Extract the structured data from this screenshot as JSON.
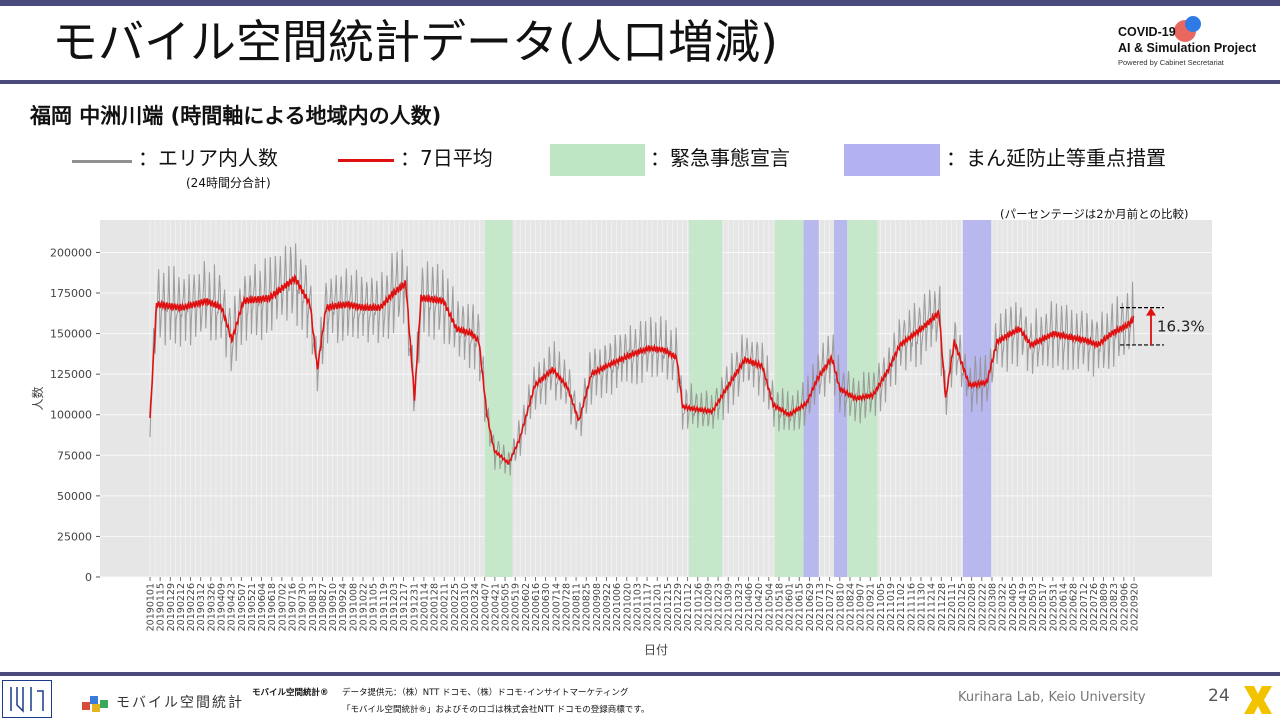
{
  "header": {
    "title": "モバイル空間統計データ(人口増減)",
    "logo_line1": "COVID-19",
    "logo_line2": "AI & Simulation Project",
    "logo_line3": "Powered by Cabinet Secretariat"
  },
  "subtitle": "福岡 中洲川端 (時間軸による地域内の人数)",
  "legend": {
    "gray_label": "：エリア内人数",
    "gray_note": "(24時間分合計)",
    "red_label": "：7日平均",
    "green_label": "：緊急事態宣言",
    "blue_label": "：まん延防止等重点措置"
  },
  "percent_note": "(パーセンテージは2か月前との比較)",
  "colors": {
    "header_rule": "#4a4a7c",
    "daily_line": "#909090",
    "avg_line": "#e01010",
    "emergency": "#bfe6c4",
    "priority": "#b2b2f0",
    "plot_bg": "#e6e6e6"
  },
  "chart_data": {
    "type": "line",
    "xlabel": "日付",
    "ylabel": "人数",
    "ylim": [
      0,
      220000
    ],
    "yticks": [
      0,
      25000,
      50000,
      75000,
      100000,
      125000,
      150000,
      175000,
      200000
    ],
    "ytick_labels": [
      "0",
      "25000",
      "50000",
      "75000",
      "100000",
      "125000",
      "150000",
      "175000",
      "200000"
    ],
    "x_tick_labels": [
      "20190101",
      "20190115",
      "20190129",
      "20190212",
      "20190226",
      "20190312",
      "20190326",
      "20190409",
      "20190423",
      "20190507",
      "20190521",
      "20190604",
      "20190618",
      "20190702",
      "20190716",
      "20190730",
      "20190813",
      "20190827",
      "20190910",
      "20190924",
      "20191008",
      "20191022",
      "20191105",
      "20191119",
      "20191203",
      "20191217",
      "20191231",
      "20200114",
      "20200128",
      "20200211",
      "20200225",
      "20200310",
      "20200324",
      "20200407",
      "20200421",
      "20200505",
      "20200519",
      "20200602",
      "20200616",
      "20200630",
      "20200714",
      "20200728",
      "20200811",
      "20200825",
      "20200908",
      "20200922",
      "20201006",
      "20201020",
      "20201103",
      "20201117",
      "20201201",
      "20201215",
      "20201229",
      "20210112",
      "20210126",
      "20210209",
      "20210223",
      "20210309",
      "20210323",
      "20210406",
      "20210420",
      "20210504",
      "20210518",
      "20210601",
      "20210615",
      "20210629",
      "20210713",
      "20210727",
      "20210810",
      "20210824",
      "20210907",
      "20210921",
      "20211005",
      "20211019",
      "20211102",
      "20211116",
      "20211130",
      "20211214",
      "20211228",
      "20220111",
      "20220125",
      "20220208",
      "20220222",
      "20220308",
      "20220322",
      "20220405",
      "20220419",
      "20220503",
      "20220517",
      "20220531",
      "20220614",
      "20220628",
      "20220712",
      "20220726",
      "20220809",
      "20220823",
      "20220906",
      "20220920"
    ],
    "emergency_periods": [
      [
        "2020-04-07",
        "2020-05-14"
      ],
      [
        "2021-01-14",
        "2021-02-28"
      ],
      [
        "2021-05-12",
        "2021-06-20"
      ],
      [
        "2021-08-20",
        "2021-09-30"
      ]
    ],
    "priority_periods": [
      [
        "2021-06-21",
        "2021-07-11"
      ],
      [
        "2021-08-02",
        "2021-08-19"
      ],
      [
        "2022-01-27",
        "2022-03-06"
      ]
    ],
    "avg_keypoints": [
      [
        "2019-01-01",
        98000
      ],
      [
        "2019-01-10",
        168000
      ],
      [
        "2019-02-15",
        166000
      ],
      [
        "2019-03-20",
        170000
      ],
      [
        "2019-04-10",
        166000
      ],
      [
        "2019-04-24",
        146000
      ],
      [
        "2019-05-10",
        170000
      ],
      [
        "2019-06-15",
        172000
      ],
      [
        "2019-07-20",
        184000
      ],
      [
        "2019-08-10",
        168000
      ],
      [
        "2019-08-20",
        128000
      ],
      [
        "2019-09-01",
        166000
      ],
      [
        "2019-10-01",
        168000
      ],
      [
        "2019-10-22",
        166000
      ],
      [
        "2019-11-15",
        166000
      ],
      [
        "2019-12-01",
        174000
      ],
      [
        "2019-12-20",
        181000
      ],
      [
        "2020-01-01",
        110000
      ],
      [
        "2020-01-10",
        172000
      ],
      [
        "2020-02-10",
        170000
      ],
      [
        "2020-02-28",
        153000
      ],
      [
        "2020-03-20",
        150000
      ],
      [
        "2020-03-30",
        145000
      ],
      [
        "2020-04-10",
        100000
      ],
      [
        "2020-04-20",
        78000
      ],
      [
        "2020-05-10",
        70000
      ],
      [
        "2020-05-25",
        85000
      ],
      [
        "2020-06-15",
        118000
      ],
      [
        "2020-07-10",
        128000
      ],
      [
        "2020-07-30",
        117000
      ],
      [
        "2020-08-15",
        96000
      ],
      [
        "2020-09-01",
        125000
      ],
      [
        "2020-10-01",
        132000
      ],
      [
        "2020-11-01",
        138000
      ],
      [
        "2020-11-20",
        141000
      ],
      [
        "2020-12-10",
        140000
      ],
      [
        "2020-12-28",
        135000
      ],
      [
        "2021-01-05",
        105000
      ],
      [
        "2021-01-15",
        104000
      ],
      [
        "2021-02-15",
        102000
      ],
      [
        "2021-03-05",
        115000
      ],
      [
        "2021-04-01",
        134000
      ],
      [
        "2021-04-25",
        130000
      ],
      [
        "2021-05-10",
        106000
      ],
      [
        "2021-06-01",
        100000
      ],
      [
        "2021-06-25",
        107000
      ],
      [
        "2021-07-10",
        122000
      ],
      [
        "2021-07-30",
        135000
      ],
      [
        "2021-08-10",
        116000
      ],
      [
        "2021-09-01",
        110000
      ],
      [
        "2021-09-25",
        112000
      ],
      [
        "2021-10-15",
        127000
      ],
      [
        "2021-11-01",
        143000
      ],
      [
        "2021-12-01",
        153000
      ],
      [
        "2021-12-25",
        163000
      ],
      [
        "2022-01-03",
        110000
      ],
      [
        "2022-01-15",
        145000
      ],
      [
        "2022-02-05",
        118000
      ],
      [
        "2022-03-01",
        120000
      ],
      [
        "2022-03-15",
        145000
      ],
      [
        "2022-04-15",
        153000
      ],
      [
        "2022-05-01",
        143000
      ],
      [
        "2022-06-01",
        150000
      ],
      [
        "2022-06-20",
        148000
      ],
      [
        "2022-07-15",
        146000
      ],
      [
        "2022-08-01",
        143000
      ],
      [
        "2022-08-20",
        150000
      ],
      [
        "2022-09-10",
        155000
      ],
      [
        "2022-09-22",
        160000
      ]
    ],
    "annotation": {
      "label": "16.3%",
      "from": 143000,
      "to": 166000
    }
  },
  "footer": {
    "mobile_label": "モバイル空間統計",
    "credit1": "モバイル空間統計®",
    "credit2": "データ提供元：（株）NTT ドコモ、（株）ドコモ･インサイトマーケティング",
    "credit3": "「モバイル空間統計®」およびそのロゴは株式会社NTT ドコモの登録商標です。",
    "lab": "Kurihara Lab, Keio University",
    "page": "24"
  }
}
